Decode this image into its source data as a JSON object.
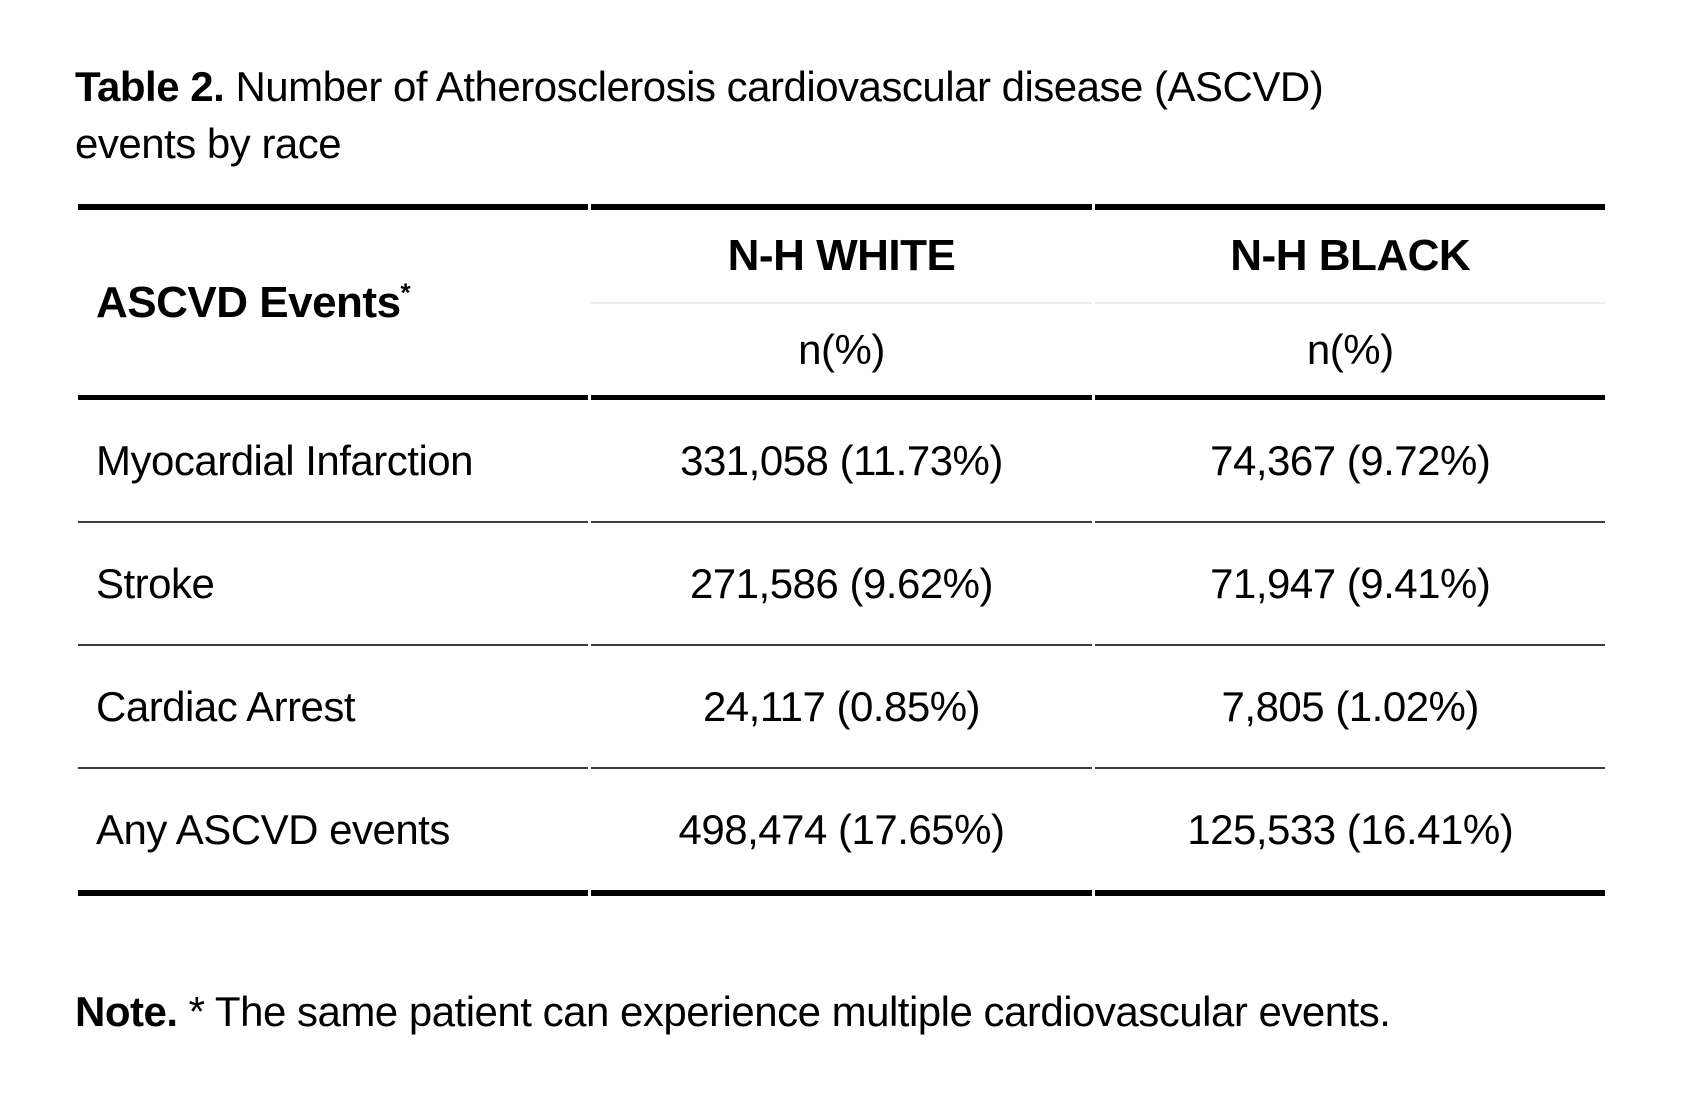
{
  "caption": {
    "label": "Table 2.",
    "text": " Number of Atherosclerosis cardiovascular disease (ASCVD) events by race"
  },
  "table": {
    "row_header": {
      "label": "ASCVD Events",
      "footnote_marker": "*"
    },
    "columns": [
      {
        "name": "N-H WHITE",
        "subtitle": "n(%)"
      },
      {
        "name": "N-H BLACK",
        "subtitle": "n(%)"
      }
    ],
    "rows": [
      {
        "event": "Myocardial Infarction",
        "nh_white": "331,058 (11.73%)",
        "nh_black": "74,367 (9.72%)"
      },
      {
        "event": "Stroke",
        "nh_white": "271,586 (9.62%)",
        "nh_black": "71,947 (9.41%)"
      },
      {
        "event": "Cardiac Arrest",
        "nh_white": "24,117 (0.85%)",
        "nh_black": "7,805 (1.02%)"
      },
      {
        "event": "Any ASCVD events",
        "nh_white": "498,474 (17.65%)",
        "nh_black": "125,533 (16.41%)"
      }
    ]
  },
  "note": {
    "label": "Note.",
    "text": " * The same patient can experience multiple cardiovascular events."
  },
  "colors": {
    "background": "#ffffff",
    "text": "#000000",
    "rule_heavy": "#000000",
    "rule_light": "#3d3d3d",
    "header_subrule": "#ececec"
  }
}
